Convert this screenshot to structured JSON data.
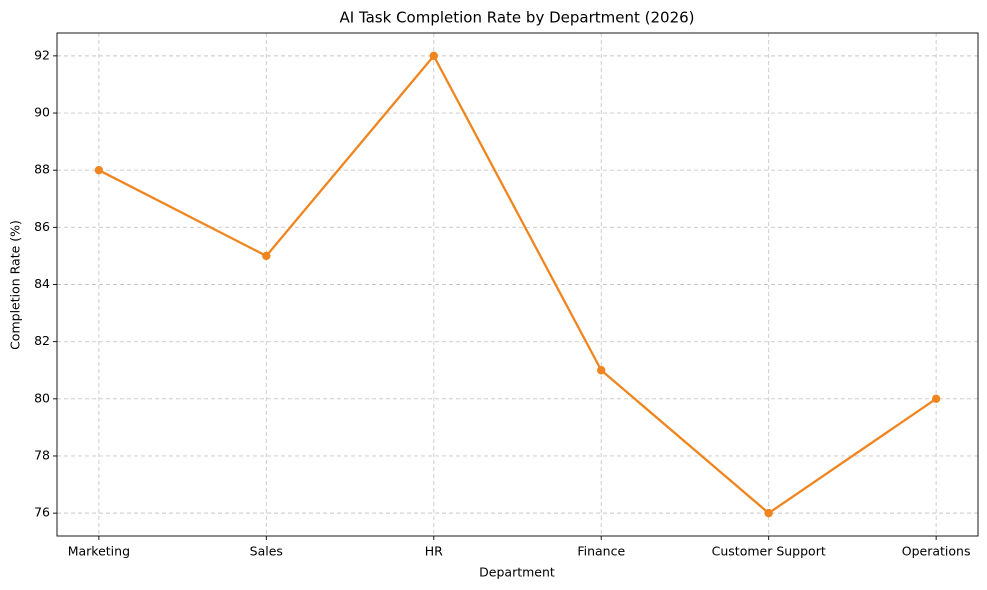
{
  "chart_data": {
    "type": "line",
    "title": "AI Task Completion Rate by Department (2026)",
    "xlabel": "Department",
    "ylabel": "Completion Rate (%)",
    "categories": [
      "Marketing",
      "Sales",
      "HR",
      "Finance",
      "Customer Support",
      "Operations"
    ],
    "values": [
      88,
      85,
      92,
      81,
      76,
      80
    ],
    "color": "#f0851f",
    "ylim": [
      75.2,
      92.8
    ],
    "yticks": [
      76,
      78,
      80,
      82,
      84,
      86,
      88,
      90,
      92
    ],
    "grid": true
  }
}
